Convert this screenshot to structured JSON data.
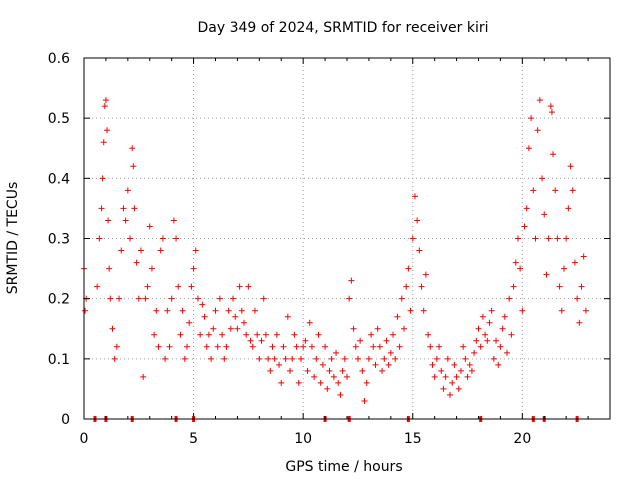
{
  "chart_data": {
    "type": "scatter",
    "title": "Day 349 of 2024, SRMTID for receiver kiri",
    "xlabel": "GPS time / hours",
    "ylabel": "SRMTID / TECUs",
    "xlim": [
      0,
      24
    ],
    "ylim": [
      0,
      0.6
    ],
    "x_ticks": [
      0,
      5,
      10,
      15,
      20
    ],
    "x_tick_labels": [
      "0",
      "5",
      "10",
      "15",
      "20"
    ],
    "y_ticks": [
      0,
      0.1,
      0.2,
      0.3,
      0.4,
      0.5,
      0.6
    ],
    "y_tick_labels": [
      "0",
      "0.1",
      "0.2",
      "0.3",
      "0.4",
      "0.5",
      "0.6"
    ],
    "grid": true,
    "marker": "+",
    "marker_color": "#ff0000",
    "series": [
      {
        "name": "SRMTID",
        "points": [
          [
            0.0,
            0.25
          ],
          [
            0.05,
            0.18
          ],
          [
            0.1,
            0.2
          ],
          [
            0.6,
            0.22
          ],
          [
            0.7,
            0.3
          ],
          [
            0.8,
            0.35
          ],
          [
            0.85,
            0.4
          ],
          [
            0.9,
            0.46
          ],
          [
            0.95,
            0.52
          ],
          [
            1.0,
            0.53
          ],
          [
            1.05,
            0.48
          ],
          [
            1.1,
            0.33
          ],
          [
            1.15,
            0.25
          ],
          [
            1.2,
            0.2
          ],
          [
            1.3,
            0.15
          ],
          [
            1.4,
            0.1
          ],
          [
            1.5,
            0.12
          ],
          [
            1.6,
            0.2
          ],
          [
            1.7,
            0.28
          ],
          [
            1.8,
            0.35
          ],
          [
            1.9,
            0.33
          ],
          [
            2.0,
            0.38
          ],
          [
            2.1,
            0.3
          ],
          [
            2.2,
            0.45
          ],
          [
            2.25,
            0.42
          ],
          [
            2.3,
            0.35
          ],
          [
            2.4,
            0.26
          ],
          [
            2.5,
            0.2
          ],
          [
            2.6,
            0.28
          ],
          [
            2.7,
            0.07
          ],
          [
            2.8,
            0.2
          ],
          [
            2.9,
            0.22
          ],
          [
            3.0,
            0.32
          ],
          [
            3.1,
            0.25
          ],
          [
            3.2,
            0.14
          ],
          [
            3.3,
            0.18
          ],
          [
            3.4,
            0.12
          ],
          [
            3.5,
            0.28
          ],
          [
            3.6,
            0.3
          ],
          [
            3.7,
            0.1
          ],
          [
            3.8,
            0.18
          ],
          [
            3.9,
            0.12
          ],
          [
            4.0,
            0.2
          ],
          [
            4.1,
            0.33
          ],
          [
            4.2,
            0.3
          ],
          [
            4.3,
            0.22
          ],
          [
            4.4,
            0.14
          ],
          [
            4.5,
            0.18
          ],
          [
            4.6,
            0.1
          ],
          [
            4.7,
            0.12
          ],
          [
            4.8,
            0.16
          ],
          [
            4.9,
            0.22
          ],
          [
            5.0,
            0.25
          ],
          [
            5.1,
            0.28
          ],
          [
            5.2,
            0.2
          ],
          [
            5.3,
            0.14
          ],
          [
            5.4,
            0.19
          ],
          [
            5.5,
            0.17
          ],
          [
            5.6,
            0.12
          ],
          [
            5.7,
            0.14
          ],
          [
            5.8,
            0.1
          ],
          [
            5.9,
            0.15
          ],
          [
            6.0,
            0.18
          ],
          [
            6.1,
            0.12
          ],
          [
            6.2,
            0.2
          ],
          [
            6.3,
            0.14
          ],
          [
            6.4,
            0.1
          ],
          [
            6.5,
            0.12
          ],
          [
            6.6,
            0.18
          ],
          [
            6.7,
            0.15
          ],
          [
            6.8,
            0.2
          ],
          [
            6.9,
            0.17
          ],
          [
            7.0,
            0.15
          ],
          [
            7.1,
            0.22
          ],
          [
            7.2,
            0.18
          ],
          [
            7.3,
            0.16
          ],
          [
            7.4,
            0.14
          ],
          [
            7.5,
            0.22
          ],
          [
            7.6,
            0.13
          ],
          [
            7.7,
            0.12
          ],
          [
            7.8,
            0.18
          ],
          [
            7.9,
            0.14
          ],
          [
            8.0,
            0.1
          ],
          [
            8.1,
            0.13
          ],
          [
            8.2,
            0.2
          ],
          [
            8.3,
            0.14
          ],
          [
            8.4,
            0.1
          ],
          [
            8.5,
            0.08
          ],
          [
            8.6,
            0.12
          ],
          [
            8.7,
            0.1
          ],
          [
            8.8,
            0.14
          ],
          [
            8.9,
            0.09
          ],
          [
            9.0,
            0.06
          ],
          [
            9.1,
            0.12
          ],
          [
            9.2,
            0.1
          ],
          [
            9.3,
            0.17
          ],
          [
            9.4,
            0.08
          ],
          [
            9.5,
            0.1
          ],
          [
            9.6,
            0.14
          ],
          [
            9.7,
            0.12
          ],
          [
            9.8,
            0.06
          ],
          [
            9.9,
            0.1
          ],
          [
            10.0,
            0.12
          ],
          [
            10.1,
            0.13
          ],
          [
            10.2,
            0.08
          ],
          [
            10.3,
            0.16
          ],
          [
            10.4,
            0.12
          ],
          [
            10.5,
            0.07
          ],
          [
            10.6,
            0.1
          ],
          [
            10.7,
            0.14
          ],
          [
            10.8,
            0.06
          ],
          [
            10.9,
            0.09
          ],
          [
            11.0,
            0.12
          ],
          [
            11.1,
            0.05
          ],
          [
            11.2,
            0.08
          ],
          [
            11.3,
            0.1
          ],
          [
            11.4,
            0.07
          ],
          [
            11.5,
            0.11
          ],
          [
            11.6,
            0.06
          ],
          [
            11.7,
            0.04
          ],
          [
            11.8,
            0.08
          ],
          [
            11.9,
            0.1
          ],
          [
            12.0,
            0.07
          ],
          [
            12.1,
            0.2
          ],
          [
            12.2,
            0.23
          ],
          [
            12.3,
            0.15
          ],
          [
            12.4,
            0.12
          ],
          [
            12.5,
            0.1
          ],
          [
            12.6,
            0.13
          ],
          [
            12.7,
            0.08
          ],
          [
            12.8,
            0.03
          ],
          [
            12.9,
            0.06
          ],
          [
            13.0,
            0.1
          ],
          [
            13.1,
            0.14
          ],
          [
            13.2,
            0.12
          ],
          [
            13.3,
            0.09
          ],
          [
            13.4,
            0.15
          ],
          [
            13.5,
            0.12
          ],
          [
            13.6,
            0.08
          ],
          [
            13.7,
            0.1
          ],
          [
            13.8,
            0.13
          ],
          [
            13.9,
            0.09
          ],
          [
            14.0,
            0.11
          ],
          [
            14.1,
            0.14
          ],
          [
            14.2,
            0.1
          ],
          [
            14.3,
            0.17
          ],
          [
            14.4,
            0.12
          ],
          [
            14.5,
            0.2
          ],
          [
            14.6,
            0.15
          ],
          [
            14.7,
            0.22
          ],
          [
            14.8,
            0.25
          ],
          [
            14.9,
            0.18
          ],
          [
            15.0,
            0.3
          ],
          [
            15.1,
            0.37
          ],
          [
            15.2,
            0.33
          ],
          [
            15.3,
            0.28
          ],
          [
            15.4,
            0.22
          ],
          [
            15.5,
            0.18
          ],
          [
            15.6,
            0.24
          ],
          [
            15.7,
            0.14
          ],
          [
            15.8,
            0.12
          ],
          [
            15.9,
            0.09
          ],
          [
            16.0,
            0.07
          ],
          [
            16.1,
            0.1
          ],
          [
            16.2,
            0.12
          ],
          [
            16.3,
            0.08
          ],
          [
            16.4,
            0.05
          ],
          [
            16.5,
            0.07
          ],
          [
            16.6,
            0.1
          ],
          [
            16.7,
            0.04
          ],
          [
            16.8,
            0.06
          ],
          [
            16.9,
            0.09
          ],
          [
            17.0,
            0.07
          ],
          [
            17.1,
            0.05
          ],
          [
            17.2,
            0.08
          ],
          [
            17.3,
            0.12
          ],
          [
            17.4,
            0.1
          ],
          [
            17.5,
            0.07
          ],
          [
            17.6,
            0.09
          ],
          [
            17.7,
            0.08
          ],
          [
            17.8,
            0.11
          ],
          [
            17.9,
            0.13
          ],
          [
            18.0,
            0.15
          ],
          [
            18.1,
            0.12
          ],
          [
            18.2,
            0.17
          ],
          [
            18.3,
            0.14
          ],
          [
            18.4,
            0.13
          ],
          [
            18.5,
            0.16
          ],
          [
            18.6,
            0.18
          ],
          [
            18.7,
            0.1
          ],
          [
            18.8,
            0.13
          ],
          [
            18.9,
            0.09
          ],
          [
            19.0,
            0.12
          ],
          [
            19.1,
            0.15
          ],
          [
            19.2,
            0.17
          ],
          [
            19.3,
            0.11
          ],
          [
            19.4,
            0.2
          ],
          [
            19.5,
            0.14
          ],
          [
            19.6,
            0.22
          ],
          [
            19.7,
            0.26
          ],
          [
            19.8,
            0.3
          ],
          [
            19.9,
            0.25
          ],
          [
            20.0,
            0.18
          ],
          [
            20.1,
            0.32
          ],
          [
            20.2,
            0.35
          ],
          [
            20.3,
            0.45
          ],
          [
            20.4,
            0.5
          ],
          [
            20.5,
            0.38
          ],
          [
            20.6,
            0.3
          ],
          [
            20.7,
            0.48
          ],
          [
            20.8,
            0.53
          ],
          [
            20.9,
            0.4
          ],
          [
            21.0,
            0.34
          ],
          [
            21.1,
            0.24
          ],
          [
            21.2,
            0.3
          ],
          [
            21.3,
            0.52
          ],
          [
            21.35,
            0.51
          ],
          [
            21.4,
            0.44
          ],
          [
            21.5,
            0.38
          ],
          [
            21.6,
            0.3
          ],
          [
            21.7,
            0.22
          ],
          [
            21.8,
            0.18
          ],
          [
            21.9,
            0.25
          ],
          [
            22.0,
            0.3
          ],
          [
            22.1,
            0.35
          ],
          [
            22.2,
            0.42
          ],
          [
            22.3,
            0.38
          ],
          [
            22.4,
            0.26
          ],
          [
            22.5,
            0.2
          ],
          [
            22.6,
            0.16
          ],
          [
            22.7,
            0.22
          ],
          [
            22.8,
            0.27
          ],
          [
            22.9,
            0.18
          ]
        ]
      }
    ],
    "baseline_markers_x": [
      0.5,
      1.0,
      2.2,
      4.2,
      5.0,
      11.0,
      12.1,
      14.8,
      18.1,
      20.5,
      21.0,
      22.5
    ]
  }
}
